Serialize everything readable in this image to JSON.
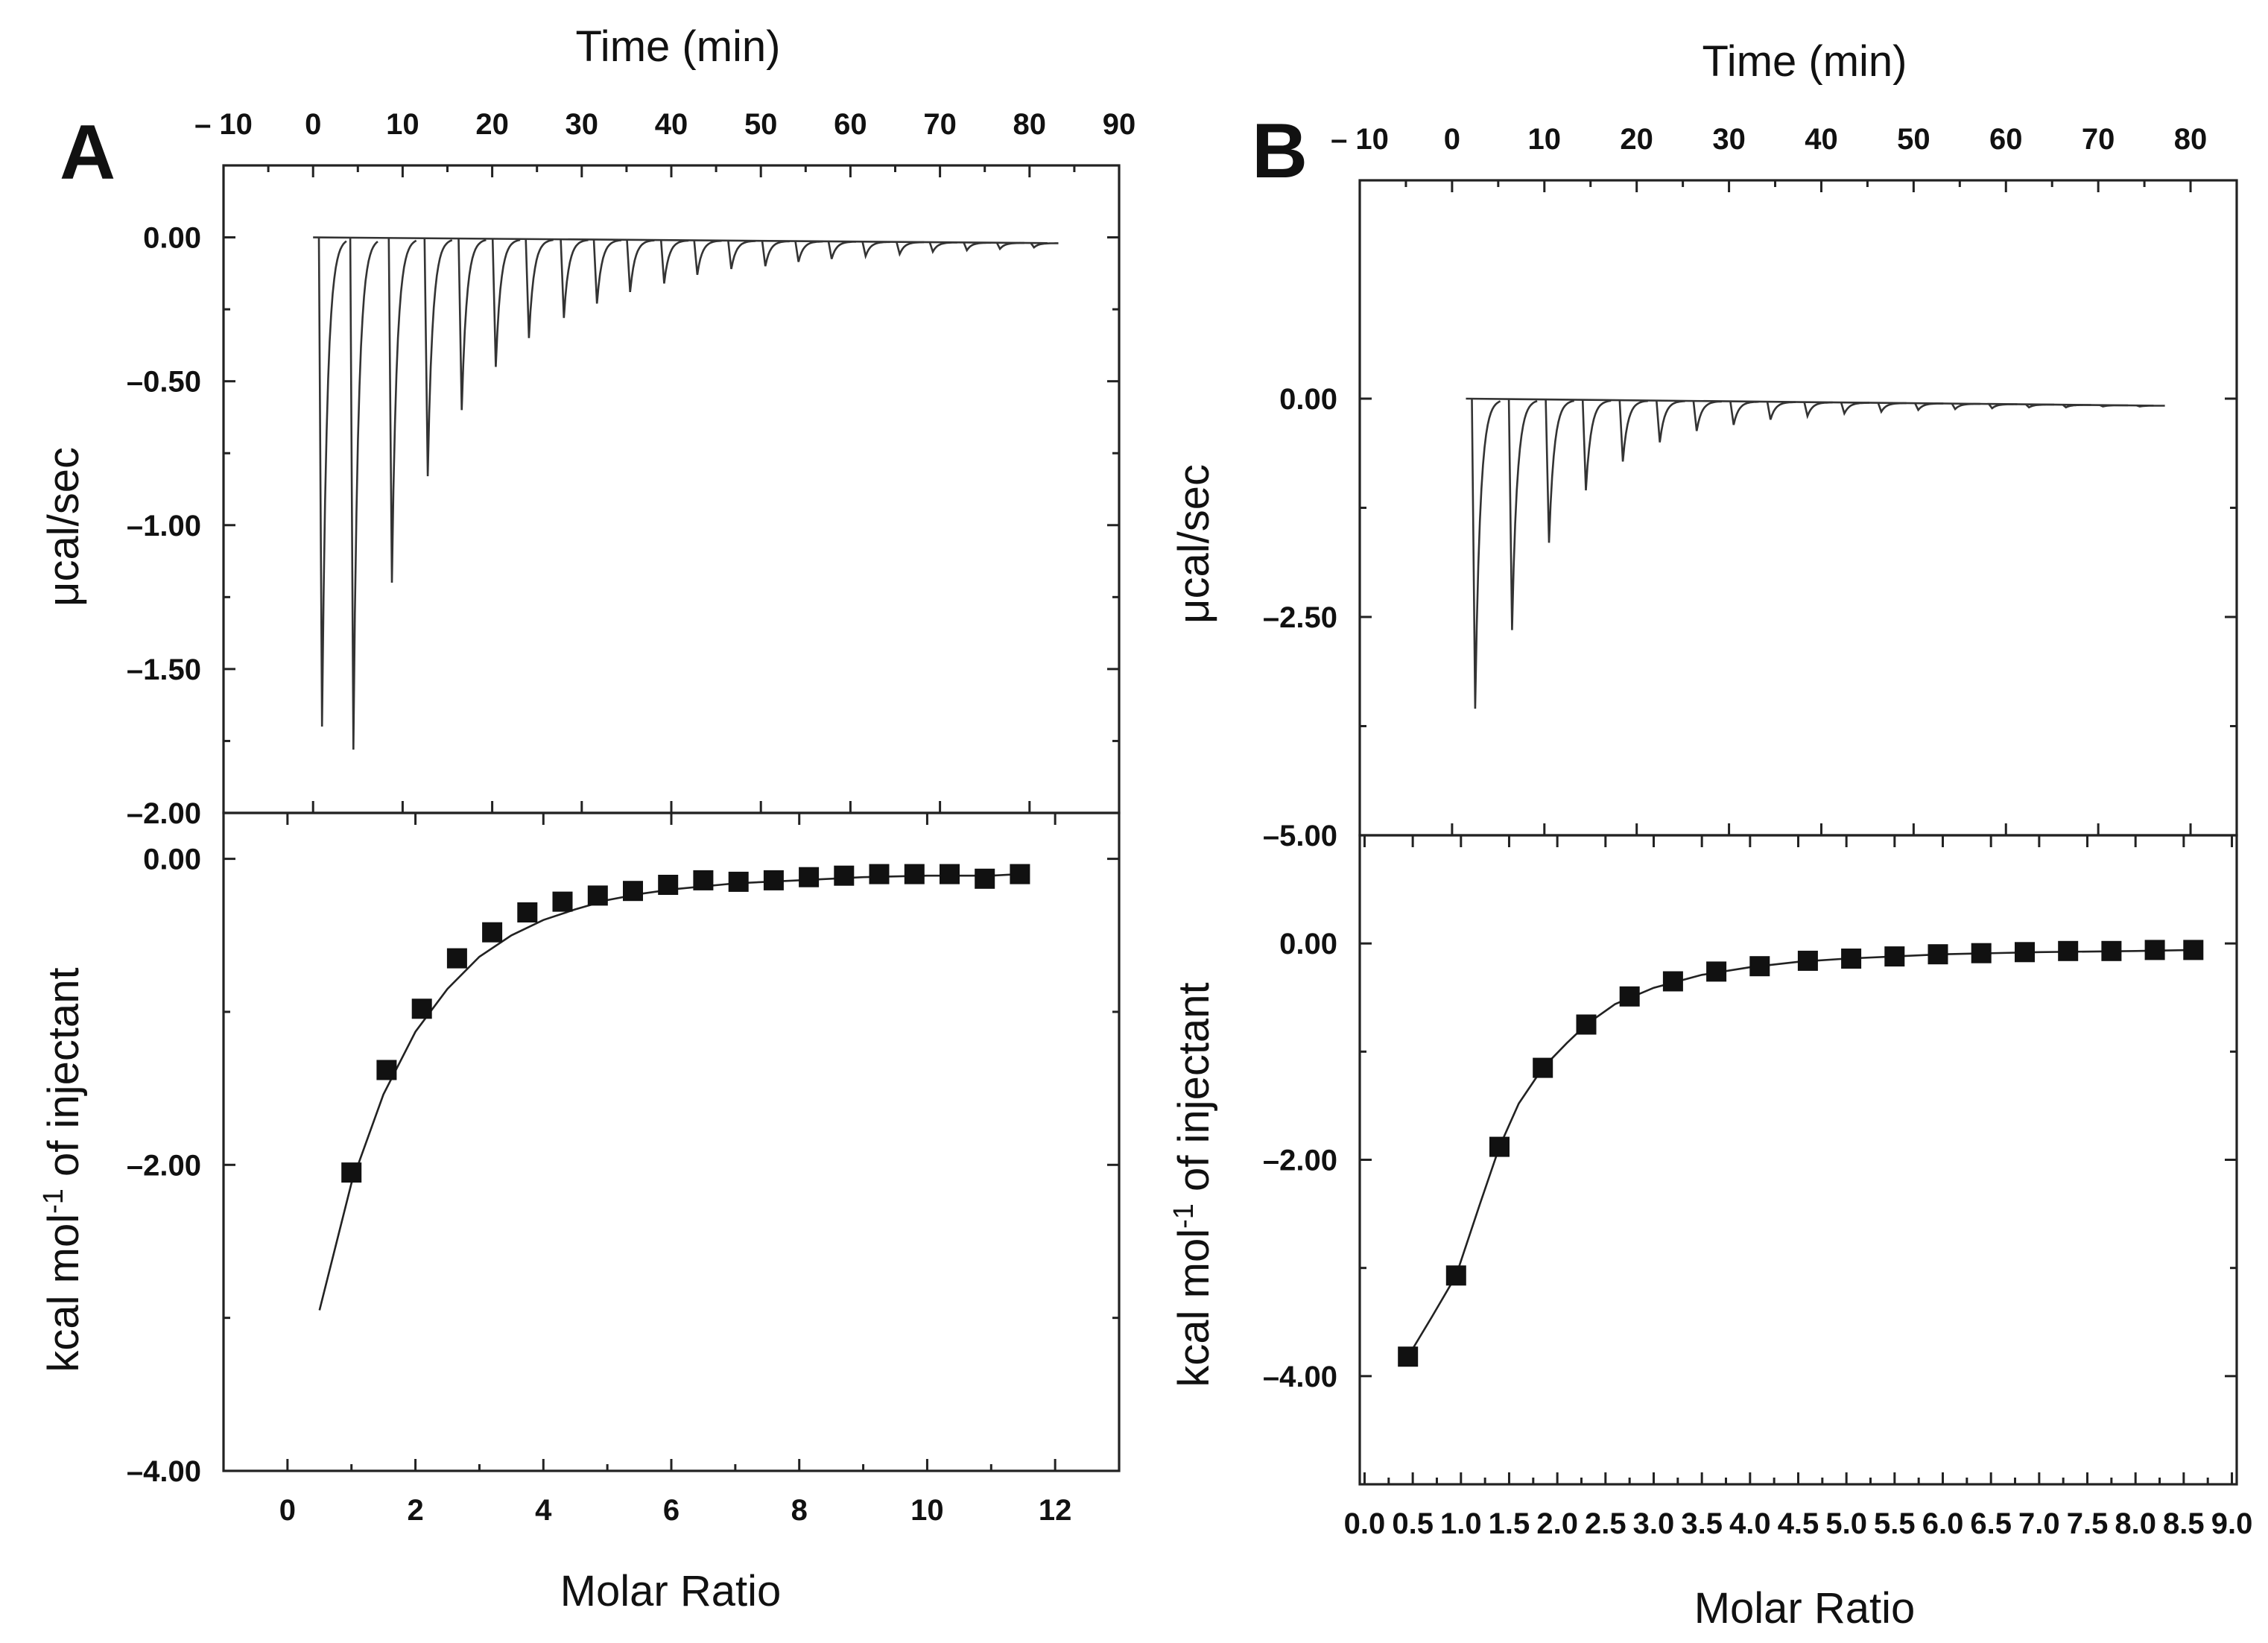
{
  "figure": {
    "colors": {
      "ink": "#111111",
      "background": "#ffffff"
    }
  },
  "chart_data": [
    {
      "panel": "A",
      "type": "line",
      "subplot": "raw_thermogram",
      "title": "",
      "xlabel": "Time (min)",
      "ylabel": "μcal/sec",
      "xlim": [
        -10,
        90
      ],
      "ylim": [
        -2.0,
        0.25
      ],
      "xticks": [
        -10,
        0,
        10,
        20,
        30,
        40,
        50,
        60,
        70,
        80,
        90
      ],
      "xtick_labels": [
        "– 10",
        "0",
        "10",
        "20",
        "30",
        "40",
        "50",
        "60",
        "70",
        "80",
        "90"
      ],
      "yticks": [
        0.0,
        -0.5,
        -1.0,
        -1.5,
        -2.0
      ],
      "ytick_labels": [
        "0.00",
        "–0.50",
        "–1.00",
        "–1.50",
        "–2.00"
      ],
      "trace_start_min": 0,
      "trace_end_min": 82,
      "baseline": 0.0,
      "baseline_end": -0.02,
      "peak_times_min": [
        1,
        4.5,
        8.8,
        12.8,
        16.6,
        20.4,
        24.1,
        28,
        31.7,
        35.4,
        39.2,
        42.9,
        46.7,
        50.5,
        54.2,
        57.9,
        61.7,
        65.5,
        69.2,
        73,
        76.7,
        80.5
      ],
      "peak_values": [
        -1.7,
        -1.78,
        -1.2,
        -0.83,
        -0.6,
        -0.45,
        -0.35,
        -0.28,
        -0.23,
        -0.19,
        -0.16,
        -0.13,
        -0.11,
        -0.1,
        -0.085,
        -0.075,
        -0.065,
        -0.058,
        -0.05,
        -0.045,
        -0.04,
        -0.035
      ]
    },
    {
      "panel": "A",
      "type": "scatter",
      "subplot": "integrated_heats",
      "title": "",
      "xlabel": "Molar Ratio",
      "ylabel": "kcal mol⁻¹ of injectant",
      "ylabel_parts": {
        "pre": "kcal mol",
        "sup": "-1",
        "post": " of injectant"
      },
      "xlim": [
        -1,
        13
      ],
      "ylim": [
        -4.0,
        0.3
      ],
      "xticks": [
        0,
        2,
        4,
        6,
        8,
        10,
        12
      ],
      "xtick_labels": [
        "0",
        "2",
        "4",
        "6",
        "8",
        "10",
        "12"
      ],
      "yticks": [
        0.0,
        -2.0,
        -4.0
      ],
      "ytick_labels": [
        "0.00",
        "–2.00",
        "–4.00"
      ],
      "x": [
        1.0,
        1.55,
        2.1,
        2.65,
        3.2,
        3.75,
        4.3,
        4.85,
        5.4,
        5.95,
        6.5,
        7.05,
        7.6,
        8.15,
        8.7,
        9.25,
        9.8,
        10.35,
        10.9,
        11.45
      ],
      "y": [
        -2.05,
        -1.38,
        -0.98,
        -0.65,
        -0.48,
        -0.35,
        -0.28,
        -0.24,
        -0.21,
        -0.17,
        -0.14,
        -0.15,
        -0.14,
        -0.12,
        -0.11,
        -0.1,
        -0.1,
        -0.1,
        -0.13,
        -0.1
      ],
      "fit_x": [
        0.5,
        1.0,
        1.5,
        2.0,
        2.5,
        3.0,
        3.5,
        4.0,
        4.5,
        5.0,
        5.5,
        6.0,
        7.0,
        8.0,
        9.0,
        10.0,
        11.0,
        11.45
      ],
      "fit_y": [
        -2.95,
        -2.12,
        -1.54,
        -1.13,
        -0.85,
        -0.64,
        -0.5,
        -0.4,
        -0.33,
        -0.27,
        -0.23,
        -0.2,
        -0.16,
        -0.14,
        -0.12,
        -0.11,
        -0.11,
        -0.1
      ]
    },
    {
      "panel": "B",
      "type": "line",
      "subplot": "raw_thermogram",
      "title": "",
      "xlabel": "Time (min)",
      "ylabel": "μcal/sec",
      "xlim": [
        -10,
        85
      ],
      "ylim": [
        -5.0,
        2.5
      ],
      "xticks": [
        -10,
        0,
        10,
        20,
        30,
        40,
        50,
        60,
        70,
        80
      ],
      "xtick_labels": [
        "– 10",
        "0",
        "10",
        "20",
        "30",
        "40",
        "50",
        "60",
        "70",
        "80"
      ],
      "yticks": [
        0.0,
        -2.5,
        -5.0
      ],
      "ytick_labels": [
        "0.00",
        "–2.50",
        "–5.00"
      ],
      "trace_start_min": 1.5,
      "trace_end_min": 76,
      "baseline": 0.0,
      "baseline_end": -0.08,
      "peak_times_min": [
        2.5,
        6.5,
        10.5,
        14.5,
        18.5,
        22.5,
        26.5,
        30.5,
        34.5,
        38.5,
        42.5,
        46.5,
        50.5,
        54.5,
        58.5,
        62.5,
        66.5,
        70.5,
        74.5
      ],
      "peak_values": [
        -3.55,
        -2.65,
        -1.65,
        -1.05,
        -0.72,
        -0.5,
        -0.37,
        -0.3,
        -0.24,
        -0.2,
        -0.17,
        -0.15,
        -0.13,
        -0.12,
        -0.11,
        -0.1,
        -0.1,
        -0.09,
        -0.09
      ]
    },
    {
      "panel": "B",
      "type": "scatter",
      "subplot": "integrated_heats",
      "title": "",
      "xlabel": "Molar Ratio",
      "ylabel": "kcal mol⁻¹ of injectant",
      "ylabel_parts": {
        "pre": "kcal mol",
        "sup": "-1",
        "post": " of injectant"
      },
      "xlim": [
        -0.05,
        9.05
      ],
      "ylim": [
        -5.0,
        1.0
      ],
      "xticks": [
        0.0,
        0.5,
        1.0,
        1.5,
        2.0,
        2.5,
        3.0,
        3.5,
        4.0,
        4.5,
        5.0,
        5.5,
        6.0,
        6.5,
        7.0,
        7.5,
        8.0,
        8.5,
        9.0
      ],
      "xtick_labels": [
        "0.0",
        "0.5",
        "1.0",
        "1.5",
        "2.0",
        "2.5",
        "3.0",
        "3.5",
        "4.0",
        "4.5",
        "5.0",
        "5.5",
        "6.0",
        "6.5",
        "7.0",
        "7.5",
        "8.0",
        "8.5",
        "9.0"
      ],
      "yticks": [
        0.0,
        -2.0,
        -4.0
      ],
      "ytick_labels": [
        "0.00",
        "–2.00",
        "–4.00"
      ],
      "x": [
        0.45,
        0.95,
        1.4,
        1.85,
        2.3,
        2.75,
        3.2,
        3.65,
        4.1,
        4.6,
        5.05,
        5.5,
        5.95,
        6.4,
        6.85,
        7.3,
        7.75,
        8.2,
        8.6
      ],
      "y": [
        -3.82,
        -3.07,
        -1.88,
        -1.15,
        -0.75,
        -0.49,
        -0.35,
        -0.26,
        -0.21,
        -0.16,
        -0.14,
        -0.12,
        -0.1,
        -0.09,
        -0.08,
        -0.07,
        -0.07,
        -0.06,
        -0.06
      ],
      "fit_x": [
        0.45,
        0.7,
        0.95,
        1.2,
        1.4,
        1.6,
        1.85,
        2.1,
        2.3,
        2.6,
        3.0,
        3.5,
        4.0,
        4.5,
        5.0,
        5.5,
        6.0,
        7.0,
        8.0,
        8.6
      ],
      "fit_y": [
        -3.82,
        -3.45,
        -3.07,
        -2.4,
        -1.88,
        -1.48,
        -1.15,
        -0.92,
        -0.75,
        -0.56,
        -0.41,
        -0.29,
        -0.22,
        -0.17,
        -0.14,
        -0.12,
        -0.1,
        -0.08,
        -0.07,
        -0.06
      ]
    }
  ]
}
